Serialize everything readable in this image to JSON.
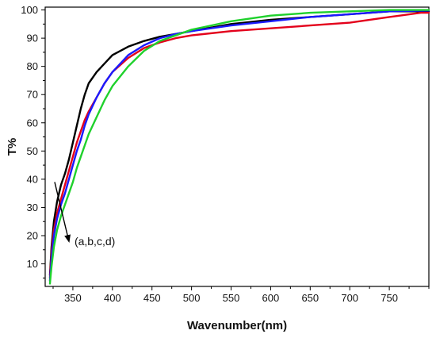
{
  "chart_data": {
    "type": "line",
    "title": "",
    "xlabel": "Wavenumber(nm)",
    "ylabel": "T%",
    "xlim": [
      315,
      800
    ],
    "ylim": [
      2,
      101
    ],
    "x_ticks": [
      350,
      400,
      450,
      500,
      550,
      600,
      650,
      700,
      750
    ],
    "y_ticks": [
      10,
      20,
      30,
      40,
      50,
      60,
      70,
      80,
      90,
      100
    ],
    "grid": false,
    "legend": "none",
    "annotation": {
      "text": "(a,b,c,d)",
      "arrow_from": [
        327,
        39
      ],
      "arrow_to": [
        345,
        18
      ]
    },
    "series": [
      {
        "color": "#000000",
        "x": [
          321,
          323,
          326,
          330,
          335,
          340,
          345,
          350,
          355,
          360,
          365,
          370,
          380,
          390,
          400,
          420,
          440,
          460,
          480,
          500,
          550,
          600,
          650,
          700,
          750,
          800
        ],
        "y": [
          6,
          16,
          25,
          32,
          38,
          42,
          47,
          53,
          59,
          65,
          70,
          74,
          78,
          81,
          84,
          87,
          89,
          90.5,
          91.5,
          92.5,
          95,
          96.5,
          97.5,
          98.5,
          99.5,
          99.5
        ]
      },
      {
        "color": "#e3001b",
        "x": [
          321,
          323,
          326,
          330,
          335,
          340,
          345,
          350,
          355,
          360,
          365,
          370,
          380,
          390,
          400,
          420,
          440,
          460,
          480,
          500,
          550,
          600,
          650,
          700,
          750,
          790,
          800
        ],
        "y": [
          5,
          14,
          22,
          28,
          33,
          38,
          43,
          48,
          53,
          57,
          61,
          64,
          69,
          74,
          78,
          83,
          86.5,
          88.5,
          90,
          91,
          92.5,
          93.5,
          94.5,
          95.5,
          97.5,
          99,
          99
        ]
      },
      {
        "color": "#1a1aff",
        "x": [
          321,
          323,
          326,
          330,
          335,
          340,
          345,
          350,
          355,
          360,
          365,
          370,
          380,
          390,
          400,
          420,
          440,
          460,
          480,
          500,
          550,
          600,
          650,
          700,
          750,
          800
        ],
        "y": [
          4,
          12,
          20,
          26,
          31,
          35,
          40,
          45,
          50,
          54,
          59,
          63,
          69,
          74,
          78,
          84,
          87.5,
          90,
          91.5,
          92.5,
          94.5,
          96,
          97.5,
          98.5,
          99.5,
          99.8
        ]
      },
      {
        "color": "#1fd12c",
        "x": [
          321,
          323,
          326,
          330,
          335,
          340,
          345,
          350,
          355,
          360,
          365,
          370,
          380,
          390,
          400,
          420,
          440,
          460,
          480,
          500,
          550,
          600,
          650,
          700,
          750,
          800
        ],
        "y": [
          3,
          9,
          16,
          22,
          27,
          31,
          35,
          39,
          44,
          48,
          52,
          56,
          62,
          68,
          73,
          80,
          85.5,
          89,
          91,
          93,
          96,
          98,
          99,
          99.5,
          100,
          100
        ]
      }
    ]
  }
}
